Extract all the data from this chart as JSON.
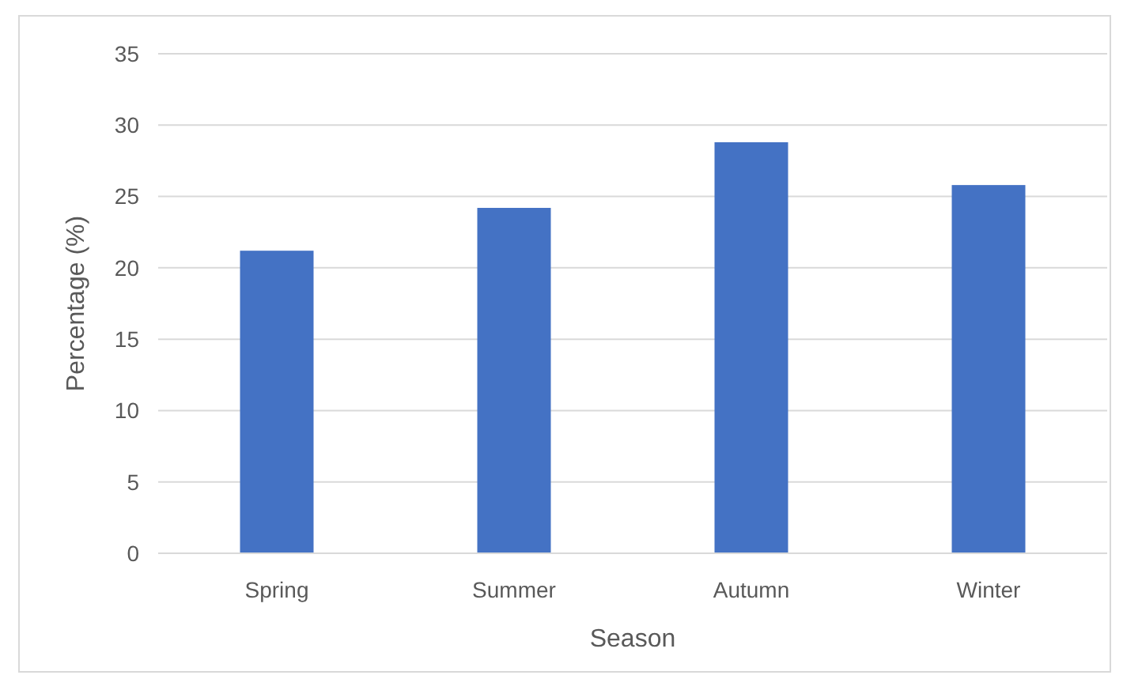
{
  "chart_data": {
    "type": "bar",
    "xlabel": "Season",
    "ylabel": "Percentage (%)",
    "categories": [
      "Spring",
      "Summer",
      "Autumn",
      "Winter"
    ],
    "values": [
      21.2,
      24.2,
      28.8,
      25.8
    ],
    "color": "#4472c4",
    "ylim": [
      0,
      35
    ],
    "yticks": [
      0,
      5,
      10,
      15,
      20,
      25,
      30,
      35
    ],
    "grid": "y"
  }
}
